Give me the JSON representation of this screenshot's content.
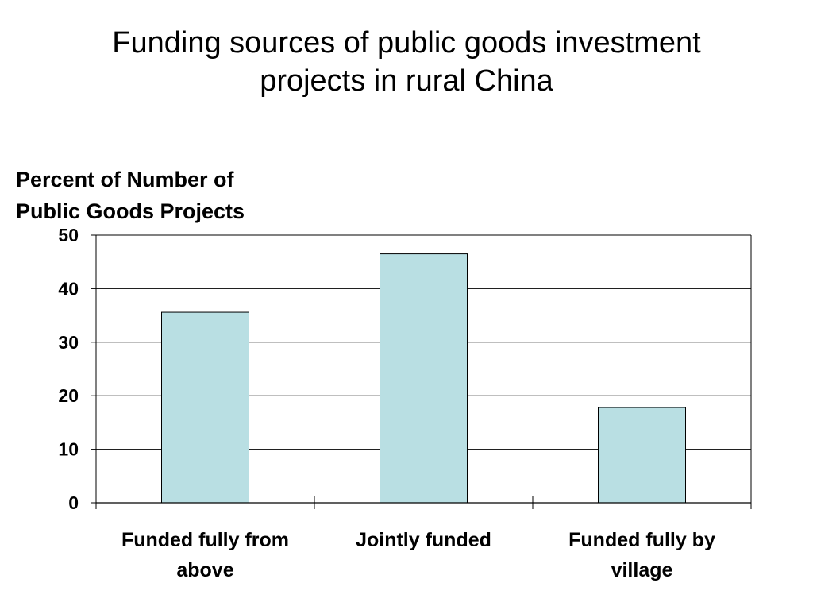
{
  "slide": {
    "title_lines": [
      "Funding sources of public goods investment",
      "projects in rural China"
    ]
  },
  "chart_data": {
    "type": "bar",
    "ylabel_lines": [
      "Percent of Number of",
      "Public Goods Projects"
    ],
    "xlabel": "",
    "categories": [
      [
        "Funded fully from",
        "above"
      ],
      [
        "Jointly funded"
      ],
      [
        "Funded fully by",
        "village"
      ]
    ],
    "values": [
      35.6,
      46.5,
      17.8
    ],
    "ylim": [
      0,
      50
    ],
    "yticks": [
      0,
      10,
      20,
      30,
      40,
      50
    ],
    "grid": true,
    "legend": "none",
    "colors": {
      "bar_fill": "#b9dfe3",
      "bar_stroke": "#000000",
      "grid": "#000000"
    }
  }
}
